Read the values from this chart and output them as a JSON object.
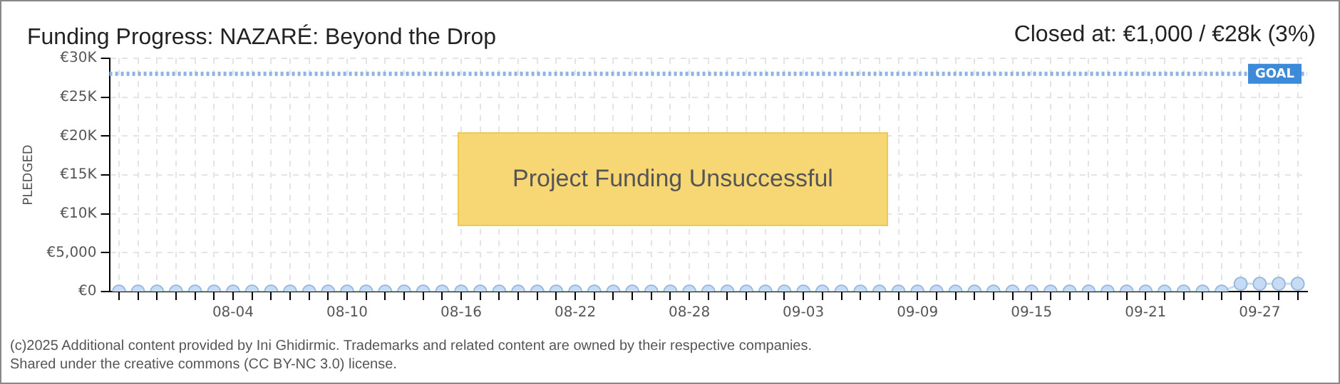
{
  "chart_data": {
    "type": "line",
    "title": "Funding Progress: NAZARÉ: Beyond the Drop",
    "ylabel": "PLEDGED",
    "categories": [
      null,
      null,
      null,
      null,
      null,
      null,
      "08-04",
      null,
      null,
      null,
      null,
      null,
      "08-10",
      null,
      null,
      null,
      null,
      null,
      "08-16",
      null,
      null,
      null,
      null,
      null,
      "08-22",
      null,
      null,
      null,
      null,
      null,
      "08-28",
      null,
      null,
      null,
      null,
      null,
      "09-03",
      null,
      null,
      null,
      null,
      null,
      "09-09",
      null,
      null,
      null,
      null,
      null,
      "09-15",
      null,
      null,
      null,
      null,
      null,
      "09-21",
      null,
      null,
      null,
      null,
      null,
      "09-27",
      null,
      null
    ],
    "series": [
      {
        "color": "#c6dcf5",
        "values": [
          0,
          0,
          0,
          0,
          0,
          0,
          0,
          0,
          0,
          0,
          0,
          0,
          0,
          0,
          0,
          0,
          0,
          0,
          0,
          0,
          0,
          0,
          0,
          0,
          0,
          0,
          0,
          0,
          0,
          0,
          0,
          0,
          0,
          0,
          0,
          0,
          0,
          0,
          0,
          0,
          0,
          0,
          0,
          0,
          0,
          0,
          0,
          0,
          0,
          0,
          0,
          0,
          0,
          0,
          0,
          0,
          0,
          0,
          0,
          1000,
          1000,
          1000,
          1000
        ]
      }
    ],
    "ylim": [
      0,
      30000
    ],
    "yticks": [
      {
        "value": 0,
        "label": "€0"
      },
      {
        "value": 5000,
        "label": "€5,000"
      },
      {
        "value": 10000,
        "label": "€10K"
      },
      {
        "value": 15000,
        "label": "€15K"
      },
      {
        "value": 20000,
        "label": "€20K"
      },
      {
        "value": 25000,
        "label": "€25K"
      },
      {
        "value": 30000,
        "label": "€30K"
      }
    ],
    "ref_lines": [
      {
        "axis": "y",
        "value": 28000,
        "label": "GOAL",
        "color": "#8fb4e3",
        "line_style": "dotted"
      }
    ],
    "annotations": [
      "Closed at:  €1,000 / €28k (3%)",
      "Project Funding Unsuccessful",
      "(c)2025 Additional content provided by Ini Ghidirmic. Trademarks and related content are owned by their respective companies.",
      "Shared under the creative commons (CC BY-NC 3.0) license."
    ],
    "grid": true,
    "marker": "circle",
    "line_style": "solid",
    "legend": false
  }
}
